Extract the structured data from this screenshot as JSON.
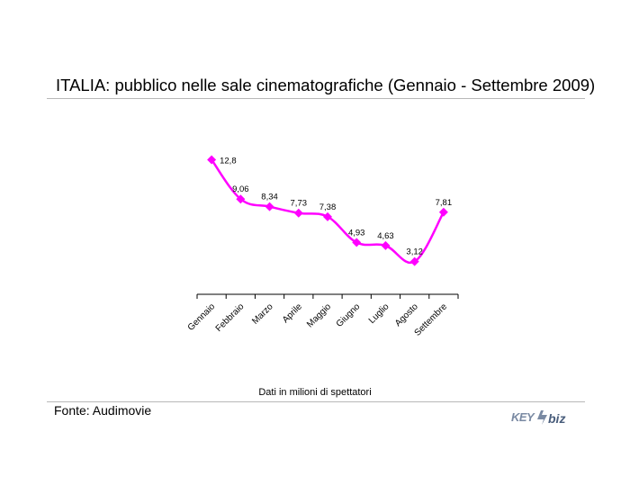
{
  "title": "ITALIA: pubblico nelle sale cinematografiche (Gennaio - Settembre 2009)",
  "subtitle": "Dati in milioni di spettatori",
  "source": "Fonte: Audimovie",
  "logo": {
    "text": "KEY4biz",
    "part1": "KEY",
    "part2": "biz"
  },
  "colors": {
    "series": "#ff00ff",
    "axis": "#000000",
    "rule": "#b8b8b8",
    "logo": "#6b7f9a"
  },
  "chart_data": {
    "type": "line",
    "categories": [
      "Gennaio",
      "Febbraio",
      "Marzo",
      "Aprile",
      "Maggio",
      "Giugno",
      "Luglio",
      "Agosto",
      "Settembre"
    ],
    "series": [
      {
        "values": [
          12.8,
          9.06,
          8.34,
          7.73,
          7.38,
          4.93,
          4.63,
          3.12,
          7.81
        ]
      }
    ],
    "data_labels": [
      "12,8",
      "9,06",
      "8,34",
      "7,73",
      "7,38",
      "4,93",
      "4,63",
      "3,12",
      "7,81"
    ],
    "ylim": [
      0,
      14.3
    ],
    "smooth": true,
    "marker": "diamond",
    "grid": false,
    "legend": "none"
  }
}
